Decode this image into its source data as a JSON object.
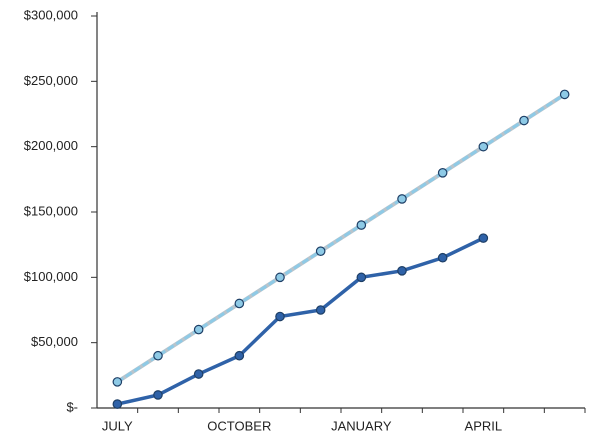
{
  "chart_data": {
    "type": "line",
    "categories": [
      "JULY",
      null,
      null,
      "OCTOBER",
      null,
      null,
      "JANUARY",
      null,
      null,
      "APRIL",
      null,
      null
    ],
    "series": [
      {
        "color": "#8ecae6",
        "line_style": "dashed",
        "values": [
          20000,
          40000,
          60000,
          80000,
          100000,
          120000,
          140000,
          160000,
          180000,
          200000,
          220000,
          240000
        ]
      },
      {
        "color": "#2f62a8",
        "line_style": "solid",
        "values": [
          3000,
          10000,
          26000,
          40000,
          70000,
          75000,
          100000,
          105000,
          115000,
          130000,
          null,
          null
        ]
      }
    ],
    "ylim": [
      0,
      300000
    ],
    "yticks": [
      {
        "value": 0,
        "label": "$-"
      },
      {
        "value": 50000,
        "label": "$50,000"
      },
      {
        "value": 100000,
        "label": "$100,000"
      },
      {
        "value": 150000,
        "label": "$150,000"
      },
      {
        "value": 200000,
        "label": "$200,000"
      },
      {
        "value": 250000,
        "label": "$250,000"
      },
      {
        "value": 300000,
        "label": "$300,000"
      }
    ],
    "grid": false
  }
}
